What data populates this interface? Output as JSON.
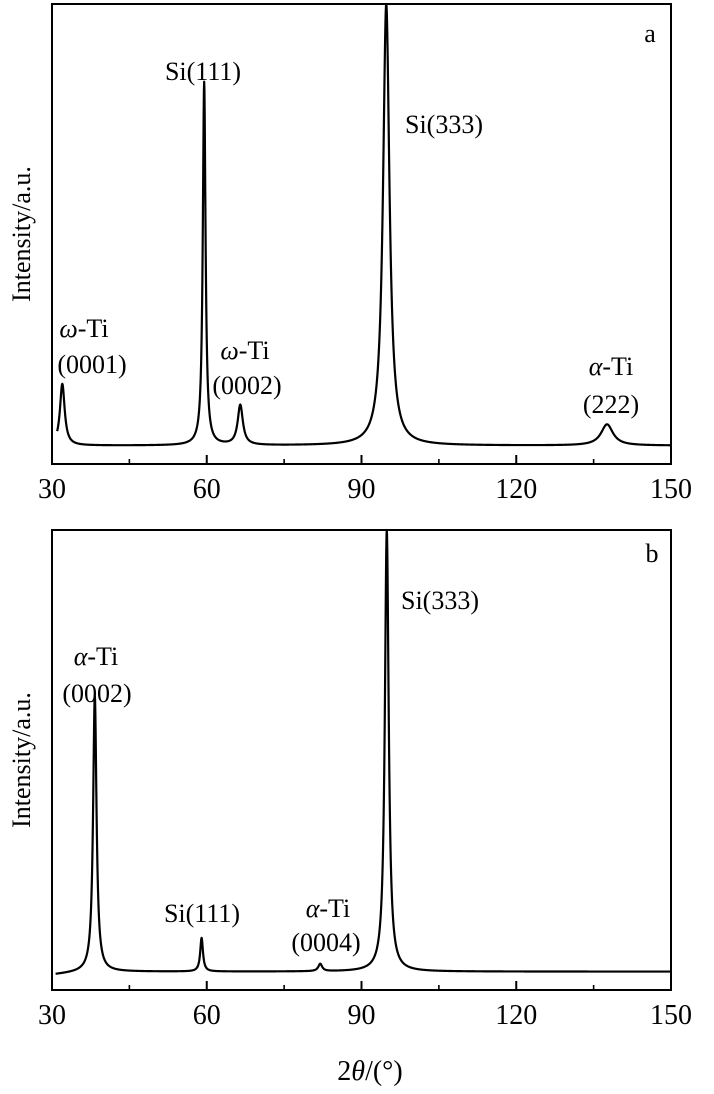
{
  "chart_data": [
    {
      "type": "line",
      "panel_label": "a",
      "xlabel": "",
      "ylabel": "Intensity/a.u.",
      "xlim": [
        30,
        150
      ],
      "ylim": [
        0,
        100
      ],
      "x_ticks": [
        30,
        60,
        90,
        120,
        150
      ],
      "grid": false,
      "legend": "none",
      "baseline": 4,
      "series_color": "#000000",
      "peaks": [
        {
          "x": 32,
          "height": 13.4,
          "width": 0.55,
          "label": [
            "ω-Ti",
            "(0001)"
          ]
        },
        {
          "x": 59.5,
          "height": 79,
          "width": 0.32,
          "label": [
            "Si(111)"
          ]
        },
        {
          "x": 66.5,
          "height": 8.7,
          "width": 0.6,
          "label": [
            "ω-Ti",
            "(0002)"
          ]
        },
        {
          "x": 94.8,
          "height": 96,
          "width": 0.75,
          "label": [
            "Si(333)"
          ]
        },
        {
          "x": 137.6,
          "height": 4.6,
          "width": 1.4,
          "label": [
            "α-Ti",
            "(222)"
          ]
        }
      ]
    },
    {
      "type": "line",
      "panel_label": "b",
      "xlabel": "2θ/(°)",
      "ylabel": "Intensity/a.u.",
      "xlim": [
        30,
        150
      ],
      "ylim": [
        0,
        100
      ],
      "x_ticks": [
        30,
        60,
        90,
        120,
        150
      ],
      "grid": false,
      "legend": "none",
      "baseline": 4,
      "series_color": "#000000",
      "peaks": [
        {
          "x": 38.3,
          "height": 60,
          "width": 0.4,
          "label": [
            "α-Ti",
            "(0002)"
          ]
        },
        {
          "x": 59,
          "height": 7.3,
          "width": 0.32,
          "label": [
            "Si(111)"
          ]
        },
        {
          "x": 82,
          "height": 1.6,
          "width": 0.45,
          "label": [
            "α-Ti",
            "(0004)"
          ]
        },
        {
          "x": 94.9,
          "height": 96,
          "width": 0.45,
          "label": [
            "Si(333)"
          ]
        }
      ]
    }
  ]
}
